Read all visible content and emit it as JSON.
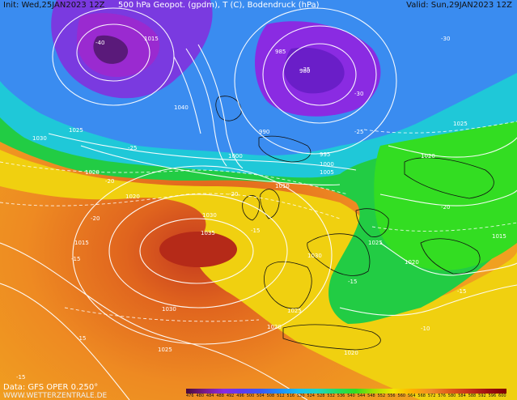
{
  "header": {
    "init": "Init: Wed,25JAN2023 12Z",
    "title": "500 hPa Geopot. (gpdm), T (C), Bodendruck (hPa)",
    "valid": "Valid: Sun,29JAN2023 12Z"
  },
  "footer": {
    "data_source": "Data: GFS OPER 0.250°",
    "website": "WWW.WETTERZENTRALE.DE"
  },
  "colorbar": {
    "ticks": [
      "476",
      "480",
      "484",
      "488",
      "492",
      "496",
      "500",
      "504",
      "508",
      "512",
      "516",
      "520",
      "524",
      "528",
      "532",
      "536",
      "540",
      "544",
      "548",
      "552",
      "556",
      "560",
      "564",
      "568",
      "572",
      "576",
      "580",
      "584",
      "588",
      "592",
      "596",
      "600"
    ]
  },
  "isobar_labels": [
    "1015",
    "1025",
    "1020",
    "1010",
    "1005",
    "1000",
    "995",
    "990",
    "985",
    "980",
    "1030",
    "1035",
    "1040"
  ],
  "temp_labels": [
    "-35",
    "-40",
    "-30",
    "-25",
    "-20",
    "-15",
    "-10"
  ]
}
